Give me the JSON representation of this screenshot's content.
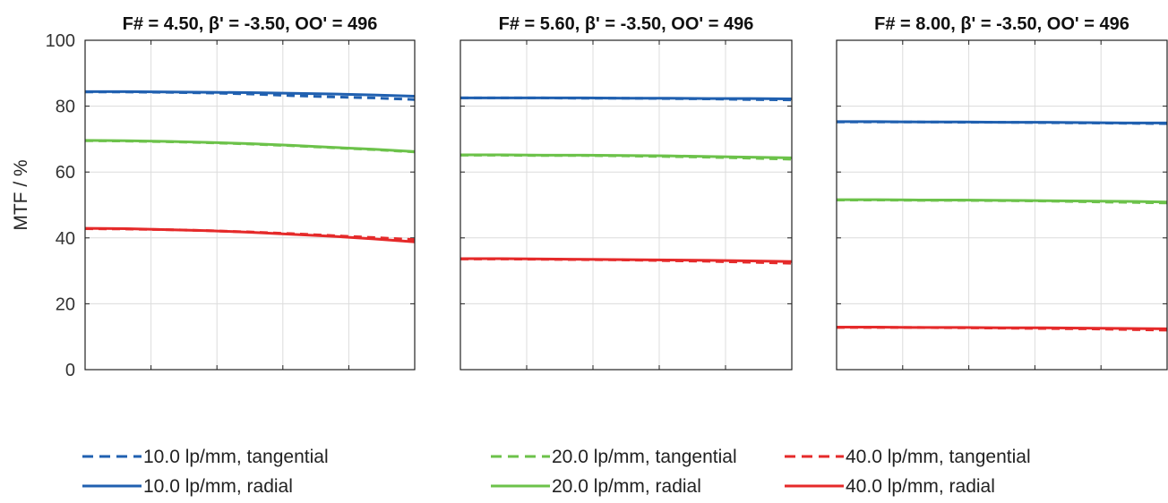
{
  "chart_data": [
    {
      "type": "line",
      "title": "F# = 4.50, β' = -3.50, OO' = 496",
      "ylabel": "MTF / %",
      "ylim": [
        0,
        100
      ],
      "yticks": [
        "0",
        "20",
        "40",
        "60",
        "80",
        "100"
      ],
      "x_grid_lines": 4,
      "grid": true,
      "series": [
        {
          "name": "10.0 lp/mm, tangential",
          "color": "#2060b0",
          "style": "dashed",
          "values": [
            84.3,
            84.3,
            84.2,
            84.0,
            83.7,
            83.2,
            82.8,
            82.5,
            82.0
          ]
        },
        {
          "name": "10.0 lp/mm, radial",
          "color": "#2060b0",
          "style": "solid",
          "values": [
            84.4,
            84.4,
            84.3,
            84.2,
            84.1,
            83.9,
            83.7,
            83.4,
            83.0
          ]
        },
        {
          "name": "20.0 lp/mm, tangential",
          "color": "#6cc24a",
          "style": "dashed",
          "values": [
            69.5,
            69.4,
            69.2,
            68.9,
            68.5,
            68.0,
            67.4,
            66.8,
            66.1
          ]
        },
        {
          "name": "20.0 lp/mm, radial",
          "color": "#6cc24a",
          "style": "solid",
          "values": [
            69.6,
            69.5,
            69.3,
            69.0,
            68.6,
            68.1,
            67.5,
            66.9,
            66.2
          ]
        },
        {
          "name": "40.0 lp/mm, tangential",
          "color": "#e52a2a",
          "style": "dashed",
          "values": [
            42.8,
            42.7,
            42.5,
            42.2,
            41.8,
            41.3,
            40.7,
            40.1,
            39.5
          ]
        },
        {
          "name": "40.0 lp/mm, radial",
          "color": "#e52a2a",
          "style": "solid",
          "values": [
            42.9,
            42.8,
            42.5,
            42.2,
            41.7,
            41.1,
            40.5,
            39.7,
            38.8
          ]
        }
      ]
    },
    {
      "type": "line",
      "title": "F# = 5.60, β' = -3.50, OO' = 496",
      "ylabel": "",
      "ylim": [
        0,
        100
      ],
      "yticks": [],
      "x_grid_lines": 4,
      "grid": true,
      "series": [
        {
          "name": "10.0 lp/mm, tangential",
          "color": "#2060b0",
          "style": "dashed",
          "values": [
            82.5,
            82.5,
            82.5,
            82.4,
            82.4,
            82.3,
            82.2,
            82.0,
            81.9
          ]
        },
        {
          "name": "10.0 lp/mm, radial",
          "color": "#2060b0",
          "style": "solid",
          "values": [
            82.5,
            82.5,
            82.5,
            82.5,
            82.4,
            82.4,
            82.3,
            82.3,
            82.2
          ]
        },
        {
          "name": "20.0 lp/mm, tangential",
          "color": "#6cc24a",
          "style": "dashed",
          "values": [
            65.1,
            65.1,
            65.0,
            65.0,
            64.9,
            64.7,
            64.5,
            64.2,
            63.9
          ]
        },
        {
          "name": "20.0 lp/mm, radial",
          "color": "#6cc24a",
          "style": "solid",
          "values": [
            65.2,
            65.2,
            65.1,
            65.1,
            65.0,
            64.9,
            64.7,
            64.5,
            64.3
          ]
        },
        {
          "name": "40.0 lp/mm, tangential",
          "color": "#e52a2a",
          "style": "dashed",
          "values": [
            33.6,
            33.6,
            33.5,
            33.4,
            33.3,
            33.1,
            32.9,
            32.6,
            32.3
          ]
        },
        {
          "name": "40.0 lp/mm, radial",
          "color": "#e52a2a",
          "style": "solid",
          "values": [
            33.7,
            33.7,
            33.6,
            33.5,
            33.4,
            33.3,
            33.2,
            33.0,
            32.8
          ]
        }
      ]
    },
    {
      "type": "line",
      "title": "F# = 8.00, β' = -3.50, OO' = 496",
      "ylabel": "",
      "ylim": [
        0,
        100
      ],
      "yticks": [],
      "x_grid_lines": 4,
      "grid": true,
      "series": [
        {
          "name": "10.0 lp/mm, tangential",
          "color": "#2060b0",
          "style": "dashed",
          "values": [
            75.2,
            75.2,
            75.2,
            75.1,
            75.1,
            75.0,
            74.9,
            74.8,
            74.7
          ]
        },
        {
          "name": "10.0 lp/mm, radial",
          "color": "#2060b0",
          "style": "solid",
          "values": [
            75.3,
            75.3,
            75.2,
            75.2,
            75.1,
            75.1,
            75.0,
            74.9,
            74.9
          ]
        },
        {
          "name": "20.0 lp/mm, tangential",
          "color": "#6cc24a",
          "style": "dashed",
          "values": [
            51.5,
            51.5,
            51.4,
            51.4,
            51.3,
            51.2,
            51.0,
            50.8,
            50.6
          ]
        },
        {
          "name": "20.0 lp/mm, radial",
          "color": "#6cc24a",
          "style": "solid",
          "values": [
            51.6,
            51.6,
            51.5,
            51.5,
            51.4,
            51.3,
            51.2,
            51.1,
            50.9
          ]
        },
        {
          "name": "40.0 lp/mm, tangential",
          "color": "#e52a2a",
          "style": "dashed",
          "values": [
            12.8,
            12.8,
            12.8,
            12.7,
            12.6,
            12.5,
            12.4,
            12.2,
            12.0
          ]
        },
        {
          "name": "40.0 lp/mm, radial",
          "color": "#e52a2a",
          "style": "solid",
          "values": [
            12.9,
            12.9,
            12.8,
            12.8,
            12.7,
            12.7,
            12.6,
            12.5,
            12.4
          ]
        }
      ]
    }
  ],
  "legend": {
    "placement": "bottom",
    "entries": [
      {
        "label": "10.0 lp/mm, tangential",
        "color": "#2060b0",
        "style": "dashed"
      },
      {
        "label": "20.0 lp/mm, tangential",
        "color": "#6cc24a",
        "style": "dashed"
      },
      {
        "label": "40.0 lp/mm, tangential",
        "color": "#e52a2a",
        "style": "dashed"
      },
      {
        "label": "10.0 lp/mm, radial",
        "color": "#2060b0",
        "style": "solid"
      },
      {
        "label": "20.0 lp/mm, radial",
        "color": "#6cc24a",
        "style": "solid"
      },
      {
        "label": "40.0 lp/mm, radial",
        "color": "#e52a2a",
        "style": "solid"
      }
    ]
  }
}
